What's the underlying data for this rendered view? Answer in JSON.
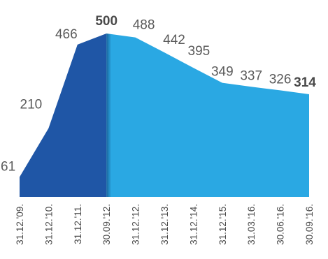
{
  "chart_data": {
    "type": "area",
    "title": "",
    "xlabel": "",
    "ylabel": "",
    "categories": [
      "31.12.'09.",
      "31.12.'10.",
      "31.12.'11.",
      "30.09.'12.",
      "31.12.'12.",
      "31.12.'13.",
      "31.12.'14.",
      "31.12.'15.",
      "31.03.'16.",
      "30.06.'16.",
      "30.09.'16."
    ],
    "values": [
      61,
      210,
      466,
      500,
      488,
      442,
      395,
      349,
      337,
      326,
      314
    ],
    "label_bold": [
      false,
      false,
      false,
      true,
      false,
      false,
      false,
      false,
      false,
      false,
      true
    ],
    "ylim": [
      0,
      500
    ],
    "grid": false,
    "legend": "none",
    "split_after_index": 3,
    "colors": {
      "segment_before": "#1f56a6",
      "segment_after": "#2aa8e3",
      "label": "#5a5a5a",
      "tick": "#4a4a4a"
    }
  }
}
